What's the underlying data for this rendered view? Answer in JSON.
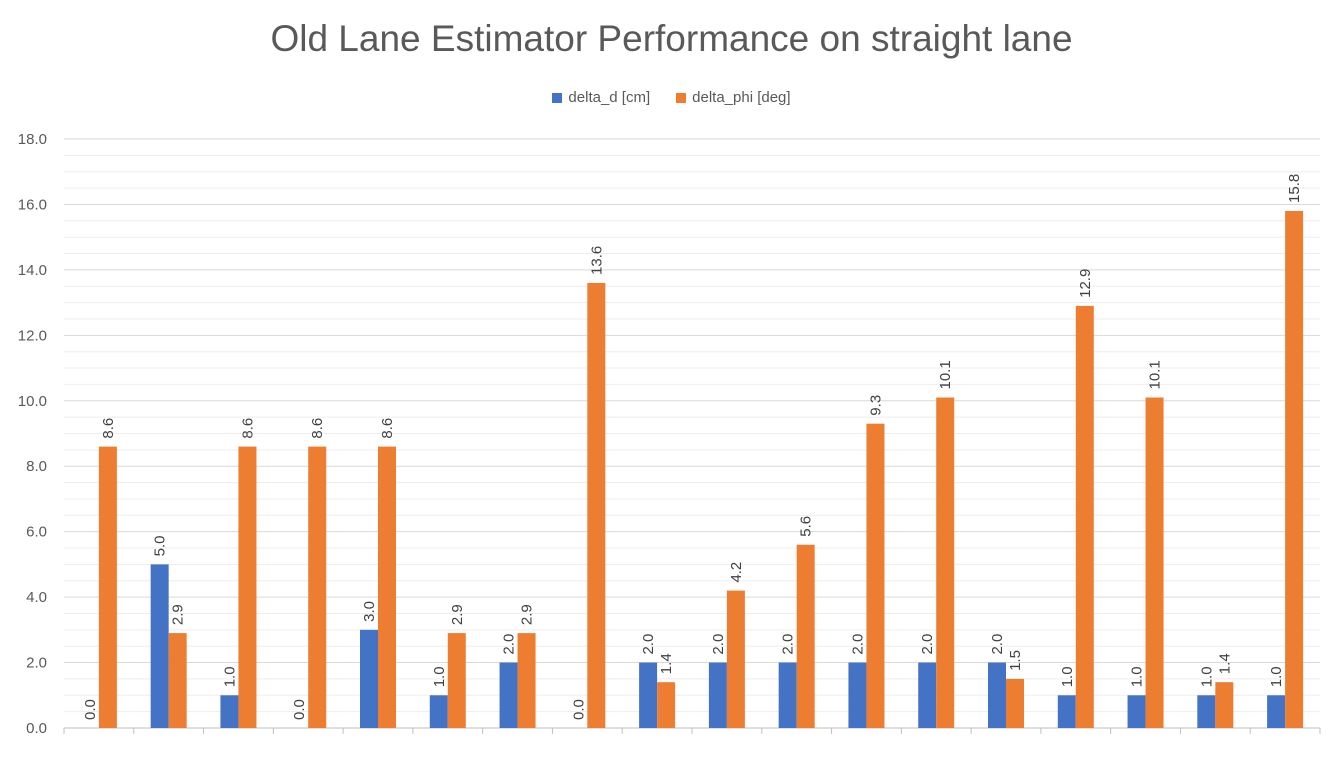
{
  "chart_data": {
    "type": "bar",
    "title": "Old Lane Estimator Performance on straight lane",
    "xlabel": "",
    "ylabel": "",
    "ylim": [
      0,
      18
    ],
    "yticks": [
      "0.0",
      "2.0",
      "4.0",
      "6.0",
      "8.0",
      "10.0",
      "12.0",
      "14.0",
      "16.0",
      "18.0"
    ],
    "grid": "horizontal",
    "legend_position": "top",
    "categories": [
      "",
      "",
      "",
      "",
      "",
      "",
      "",
      "",
      "",
      "",
      "",
      "",
      "",
      "",
      "",
      "",
      "",
      ""
    ],
    "series": [
      {
        "name": "delta_d [cm]",
        "color": "#4472C4",
        "values": [
          0.0,
          5.0,
          1.0,
          0.0,
          3.0,
          1.0,
          2.0,
          0.0,
          2.0,
          2.0,
          2.0,
          2.0,
          2.0,
          2.0,
          1.0,
          1.0,
          1.0,
          1.0
        ],
        "labels": [
          "0.0",
          "5.0",
          "1.0",
          "0.0",
          "3.0",
          "1.0",
          "2.0",
          "0.0",
          "2.0",
          "2.0",
          "2.0",
          "2.0",
          "2.0",
          "2.0",
          "1.0",
          "1.0",
          "1.0",
          "1.0"
        ]
      },
      {
        "name": "delta_phi [deg]",
        "color": "#ED7D31",
        "values": [
          8.6,
          2.9,
          8.6,
          8.6,
          8.6,
          2.9,
          2.9,
          13.6,
          1.4,
          4.2,
          5.6,
          9.3,
          10.1,
          1.5,
          12.9,
          10.1,
          1.4,
          15.8
        ],
        "labels": [
          "8.6",
          "2.9",
          "8.6",
          "8.6",
          "8.6",
          "2.9",
          "2.9",
          "13.6",
          "1.4",
          "4.2",
          "5.6",
          "9.3",
          "10.1",
          "1.5",
          "12.9",
          "10.1",
          "1.4",
          "15.8"
        ]
      }
    ]
  }
}
